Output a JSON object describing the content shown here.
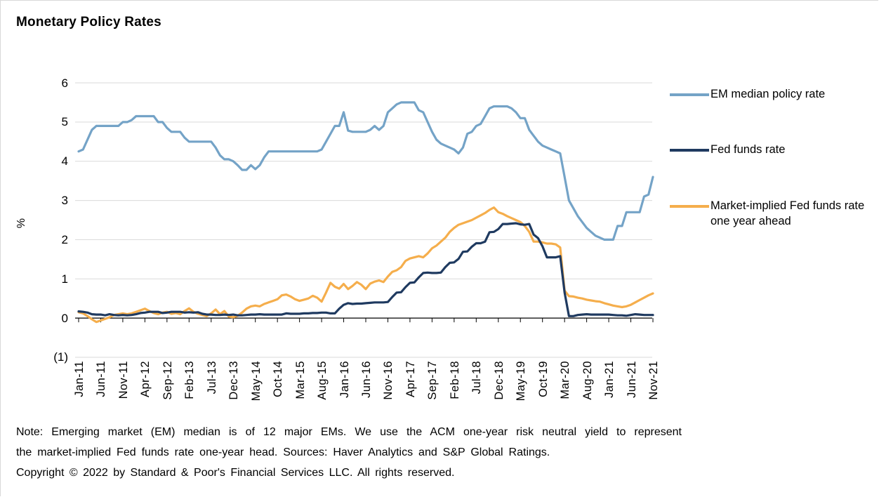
{
  "title": "Monetary Policy Rates",
  "note": {
    "line1": "Note: Emerging market (EM) median is of 12 major EMs. We use the ACM one-year risk neutral yield to represent",
    "line2": "the market-implied Fed funds rate one-year head. Sources: Haver Analytics and S&P Global Ratings.",
    "copyright": "Copyright © 2022 by Standard & Poor's Financial Services LLC. All rights reserved."
  },
  "legend": {
    "items": [
      {
        "label": "EM median policy rate",
        "series_index": 0
      },
      {
        "label": "Fed funds rate",
        "series_index": 1
      },
      {
        "label": "Market-implied Fed funds rate one year ahead",
        "series_index": 2
      }
    ]
  },
  "colors": {
    "em_median": "#74A3C7",
    "fed_funds": "#1F3A60",
    "market_implied": "#F5AE4C",
    "gridline": "#D9D9D9",
    "axis": "#000000"
  },
  "chart_data": {
    "type": "line",
    "title": "Monetary Policy Rates",
    "xlabel": "",
    "ylabel": "%",
    "ylim": [
      -1,
      6
    ],
    "grid": "horizontal",
    "legend_position": "right",
    "x_frequency": "monthly",
    "x_start": "Jan-2011",
    "x_end": "Nov-2021",
    "x_tick_labels": [
      "Jan-11",
      "Jun-11",
      "Nov-11",
      "Apr-12",
      "Sep-12",
      "Feb-13",
      "Jul-13",
      "Dec-13",
      "May-14",
      "Oct-14",
      "Mar-15",
      "Aug-15",
      "Jan-16",
      "Jun-16",
      "Nov-16",
      "Apr-17",
      "Sep-17",
      "Feb-18",
      "Jul-18",
      "Dec-18",
      "May-19",
      "Oct-19",
      "Mar-20",
      "Aug-20",
      "Jan-21",
      "Jun-21",
      "Nov-21"
    ],
    "x_tick_interval_months": 5,
    "y_ticks": [
      {
        "label": "6",
        "value": 6
      },
      {
        "label": "5",
        "value": 5
      },
      {
        "label": "4",
        "value": 4
      },
      {
        "label": "3",
        "value": 3
      },
      {
        "label": "2",
        "value": 2
      },
      {
        "label": "1",
        "value": 1
      },
      {
        "label": "0",
        "value": 0
      },
      {
        "label": "(1)",
        "value": -1
      }
    ],
    "series": [
      {
        "name": "EM median policy rate",
        "color": "#74A3C7",
        "values": [
          4.25,
          4.3,
          4.55,
          4.8,
          4.9,
          4.9,
          4.9,
          4.9,
          4.9,
          4.9,
          5.0,
          5.0,
          5.05,
          5.15,
          5.15,
          5.15,
          5.15,
          5.15,
          5.0,
          5.0,
          4.85,
          4.75,
          4.75,
          4.75,
          4.6,
          4.5,
          4.5,
          4.5,
          4.5,
          4.5,
          4.5,
          4.35,
          4.15,
          4.05,
          4.05,
          4.0,
          3.9,
          3.78,
          3.78,
          3.9,
          3.8,
          3.9,
          4.1,
          4.25,
          4.25,
          4.25,
          4.25,
          4.25,
          4.25,
          4.25,
          4.25,
          4.25,
          4.25,
          4.25,
          4.25,
          4.3,
          4.5,
          4.7,
          4.9,
          4.9,
          5.25,
          4.78,
          4.75,
          4.75,
          4.75,
          4.75,
          4.8,
          4.9,
          4.8,
          4.9,
          5.25,
          5.35,
          5.45,
          5.5,
          5.5,
          5.5,
          5.5,
          5.3,
          5.25,
          5.0,
          4.75,
          4.55,
          4.45,
          4.4,
          4.35,
          4.3,
          4.2,
          4.35,
          4.7,
          4.75,
          4.9,
          4.95,
          5.15,
          5.35,
          5.4,
          5.4,
          5.4,
          5.4,
          5.35,
          5.25,
          5.1,
          5.1,
          4.8,
          4.65,
          4.5,
          4.4,
          4.35,
          4.3,
          4.25,
          4.2,
          3.6,
          3.0,
          2.8,
          2.6,
          2.45,
          2.3,
          2.2,
          2.1,
          2.05,
          2.0,
          2.0,
          2.0,
          2.35,
          2.35,
          2.7,
          2.7,
          2.7,
          2.7,
          3.1,
          3.15,
          3.6
        ]
      },
      {
        "name": "Fed funds rate",
        "color": "#1F3A60",
        "values": [
          0.17,
          0.16,
          0.14,
          0.1,
          0.09,
          0.09,
          0.07,
          0.1,
          0.08,
          0.07,
          0.08,
          0.07,
          0.08,
          0.1,
          0.13,
          0.14,
          0.16,
          0.16,
          0.16,
          0.13,
          0.14,
          0.16,
          0.16,
          0.16,
          0.14,
          0.15,
          0.14,
          0.15,
          0.11,
          0.09,
          0.09,
          0.08,
          0.08,
          0.09,
          0.08,
          0.09,
          0.07,
          0.07,
          0.08,
          0.09,
          0.09,
          0.1,
          0.09,
          0.09,
          0.09,
          0.09,
          0.09,
          0.12,
          0.11,
          0.11,
          0.11,
          0.12,
          0.12,
          0.13,
          0.13,
          0.14,
          0.14,
          0.12,
          0.12,
          0.24,
          0.34,
          0.38,
          0.36,
          0.37,
          0.37,
          0.38,
          0.39,
          0.4,
          0.4,
          0.4,
          0.41,
          0.54,
          0.65,
          0.66,
          0.79,
          0.9,
          0.91,
          1.04,
          1.15,
          1.16,
          1.15,
          1.15,
          1.16,
          1.3,
          1.41,
          1.42,
          1.51,
          1.69,
          1.7,
          1.82,
          1.91,
          1.91,
          1.95,
          2.19,
          2.2,
          2.27,
          2.4,
          2.4,
          2.41,
          2.42,
          2.39,
          2.38,
          2.4,
          2.13,
          2.04,
          1.83,
          1.55,
          1.55,
          1.55,
          1.58,
          0.65,
          0.05,
          0.05,
          0.08,
          0.09,
          0.1,
          0.09,
          0.09,
          0.09,
          0.09,
          0.09,
          0.08,
          0.07,
          0.07,
          0.06,
          0.08,
          0.1,
          0.09,
          0.08,
          0.08,
          0.08
        ]
      },
      {
        "name": "Market-implied Fed funds rate one year ahead",
        "color": "#F5AE4C",
        "values": [
          0.15,
          0.12,
          0.05,
          -0.03,
          -0.1,
          -0.06,
          -0.02,
          0.02,
          0.08,
          0.1,
          0.12,
          0.1,
          0.12,
          0.16,
          0.2,
          0.24,
          0.18,
          0.13,
          0.1,
          0.14,
          0.16,
          0.11,
          0.13,
          0.1,
          0.18,
          0.25,
          0.16,
          0.11,
          0.08,
          0.05,
          0.12,
          0.22,
          0.1,
          0.18,
          0.04,
          0.02,
          0.06,
          0.14,
          0.24,
          0.3,
          0.32,
          0.3,
          0.36,
          0.4,
          0.44,
          0.48,
          0.58,
          0.6,
          0.55,
          0.48,
          0.44,
          0.47,
          0.5,
          0.57,
          0.52,
          0.42,
          0.65,
          0.9,
          0.8,
          0.75,
          0.87,
          0.74,
          0.82,
          0.92,
          0.85,
          0.74,
          0.88,
          0.93,
          0.96,
          0.92,
          1.06,
          1.18,
          1.22,
          1.3,
          1.46,
          1.52,
          1.55,
          1.58,
          1.55,
          1.65,
          1.78,
          1.85,
          1.95,
          2.05,
          2.2,
          2.3,
          2.38,
          2.42,
          2.46,
          2.5,
          2.56,
          2.62,
          2.68,
          2.76,
          2.82,
          2.7,
          2.66,
          2.6,
          2.55,
          2.5,
          2.45,
          2.35,
          2.2,
          1.95,
          1.95,
          1.93,
          1.9,
          1.9,
          1.88,
          1.8,
          0.7,
          0.56,
          0.55,
          0.52,
          0.5,
          0.47,
          0.45,
          0.43,
          0.42,
          0.38,
          0.35,
          0.32,
          0.3,
          0.28,
          0.3,
          0.34,
          0.4,
          0.46,
          0.52,
          0.58,
          0.63
        ]
      }
    ]
  }
}
